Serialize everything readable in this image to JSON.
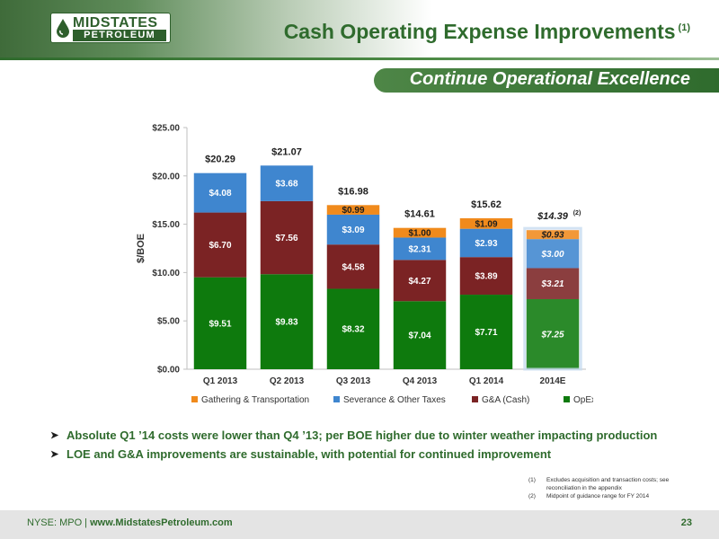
{
  "header": {
    "logo_top": "MIDSTATES",
    "logo_bottom": "PETROLEUM",
    "title": "Cash Operating Expense Improvements",
    "title_note": "(1)"
  },
  "banner": {
    "text": "Continue Operational Excellence"
  },
  "chart_data": {
    "type": "bar",
    "stacked": true,
    "categories": [
      "Q1 2013",
      "Q2 2013",
      "Q3 2013",
      "Q4 2013",
      "Q1 2014",
      "2014E"
    ],
    "ylabel": "$/BOE",
    "ylim": [
      0,
      25
    ],
    "yticks": [
      "$0.00",
      "$5.00",
      "$10.00",
      "$15.00",
      "$20.00",
      "$25.00"
    ],
    "series": [
      {
        "name": "OpEx",
        "color": "#0e7a0d",
        "values": [
          9.51,
          9.83,
          8.32,
          7.04,
          7.71,
          7.25
        ],
        "labels": [
          "$9.51",
          "$9.83",
          "$8.32",
          "$7.04",
          "$7.71",
          "$7.25"
        ]
      },
      {
        "name": "G&A (Cash)",
        "color": "#7b2324",
        "values": [
          6.7,
          7.56,
          4.58,
          4.27,
          3.89,
          3.21
        ],
        "labels": [
          "$6.70",
          "$7.56",
          "$4.58",
          "$4.27",
          "$3.89",
          "$3.21"
        ]
      },
      {
        "name": "Severance & Other Taxes",
        "color": "#3f86cf",
        "values": [
          4.08,
          3.68,
          3.09,
          2.31,
          2.93,
          3.0
        ],
        "labels": [
          "$4.08",
          "$3.68",
          "$3.09",
          "$2.31",
          "$2.93",
          "$3.00"
        ]
      },
      {
        "name": "Gathering & Transportation",
        "color": "#f08a1c",
        "values": [
          0,
          0,
          0.99,
          1.0,
          1.09,
          0.93
        ],
        "labels": [
          "",
          "",
          "$0.99",
          "$1.00",
          "$1.09",
          "$0.93"
        ]
      }
    ],
    "totals": [
      "$20.29",
      "$21.07",
      "$16.98",
      "$14.61",
      "$15.62",
      "$14.39"
    ],
    "estimate_note": "(2)",
    "legend_order": [
      "Gathering & Transportation",
      "Severance & Other Taxes",
      "G&A (Cash)",
      "OpEx"
    ],
    "legend_position": "bottom",
    "grid": false
  },
  "bullets": [
    "Absolute Q1 ’14 costs were lower than Q4 ’13; per BOE higher due to winter weather impacting  production",
    "LOE and G&A improvements are sustainable, with potential for continued improvement"
  ],
  "footnotes": [
    {
      "num": "(1)",
      "text": "Excludes acquisition and transaction costs; see reconciliation in the appendix"
    },
    {
      "num": "(2)",
      "text": "Midpoint of guidance range for FY 2014"
    }
  ],
  "footer": {
    "ticker": "NYSE: MPO",
    "separator": " | ",
    "website": "www.MidstatesPetroleum.com",
    "page_number": "23"
  }
}
